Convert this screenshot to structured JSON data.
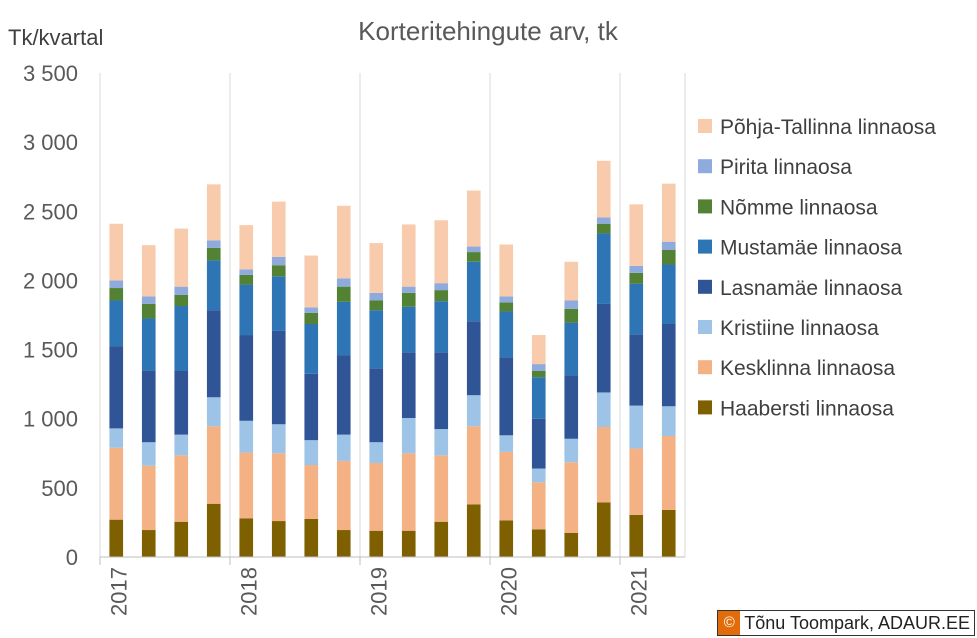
{
  "chart_data": {
    "type": "bar",
    "stacked": true,
    "title": "Korteritehingute arv, tk",
    "ylabel": "Tk/kvartal",
    "xlabel": "",
    "ylim": [
      0,
      3500
    ],
    "yticks": [
      0,
      500,
      1000,
      1500,
      2000,
      2500,
      3000,
      3500
    ],
    "ytick_labels": [
      "0",
      "500",
      "1 000",
      "1 500",
      "2 000",
      "2 500",
      "3 000",
      "3 500"
    ],
    "year_labels": [
      "2017",
      "2018",
      "2019",
      "2020",
      "2021"
    ],
    "categories": [
      "2017 Q1",
      "2017 Q2",
      "2017 Q3",
      "2017 Q4",
      "2018 Q1",
      "2018 Q2",
      "2018 Q3",
      "2018 Q4",
      "2019 Q1",
      "2019 Q2",
      "2019 Q3",
      "2019 Q4",
      "2020 Q1",
      "2020 Q2",
      "2020 Q3",
      "2020 Q4",
      "2021 Q1",
      "2021 Q2"
    ],
    "grid": "vertical-year-lines",
    "legend_position": "right",
    "series": [
      {
        "name": "Haabersti linnaosa",
        "color": "#7f6000",
        "values": [
          270,
          195,
          255,
          385,
          280,
          260,
          275,
          195,
          190,
          190,
          255,
          380,
          265,
          200,
          175,
          395,
          305,
          340
        ]
      },
      {
        "name": "Kesklinna linnaosa",
        "color": "#f4b183",
        "values": [
          520,
          465,
          480,
          560,
          475,
          490,
          390,
          500,
          490,
          560,
          480,
          565,
          495,
          340,
          510,
          545,
          480,
          535
        ]
      },
      {
        "name": "Kristiine linnaosa",
        "color": "#9dc3e6",
        "values": [
          140,
          170,
          150,
          210,
          230,
          210,
          180,
          190,
          150,
          255,
          190,
          225,
          120,
          100,
          170,
          250,
          310,
          215
        ]
      },
      {
        "name": "Lasnamäe linnaosa",
        "color": "#2f5597",
        "values": [
          595,
          520,
          460,
          630,
          620,
          675,
          480,
          575,
          535,
          475,
          555,
          535,
          565,
          360,
          460,
          640,
          515,
          595
        ]
      },
      {
        "name": "Mustamäe linnaosa",
        "color": "#2e75b6",
        "values": [
          330,
          375,
          470,
          360,
          365,
          395,
          360,
          385,
          420,
          330,
          370,
          430,
          330,
          300,
          380,
          510,
          365,
          430
        ]
      },
      {
        "name": "Nõmme linnaosa",
        "color": "#548235",
        "values": [
          90,
          105,
          80,
          90,
          70,
          80,
          80,
          110,
          70,
          100,
          80,
          70,
          65,
          45,
          100,
          70,
          80,
          105
        ]
      },
      {
        "name": "Pirita linnaosa",
        "color": "#8faadc",
        "values": [
          55,
          55,
          60,
          55,
          40,
          60,
          40,
          60,
          55,
          45,
          50,
          40,
          45,
          50,
          60,
          45,
          50,
          60
        ]
      },
      {
        "name": "Põhja-Tallinna linnaosa",
        "color": "#f8cbad",
        "values": [
          410,
          370,
          420,
          405,
          320,
          400,
          375,
          525,
          360,
          450,
          455,
          405,
          375,
          210,
          280,
          410,
          445,
          420
        ]
      }
    ],
    "legend_order": [
      "Põhja-Tallinna linnaosa",
      "Pirita linnaosa",
      "Nõmme linnaosa",
      "Mustamäe linnaosa",
      "Lasnamäe linnaosa",
      "Kristiine linnaosa",
      "Kesklinna linnaosa",
      "Haabersti linnaosa"
    ]
  },
  "credit": {
    "icon": "©",
    "text": "Tõnu Toompark, ADAUR.EE"
  }
}
